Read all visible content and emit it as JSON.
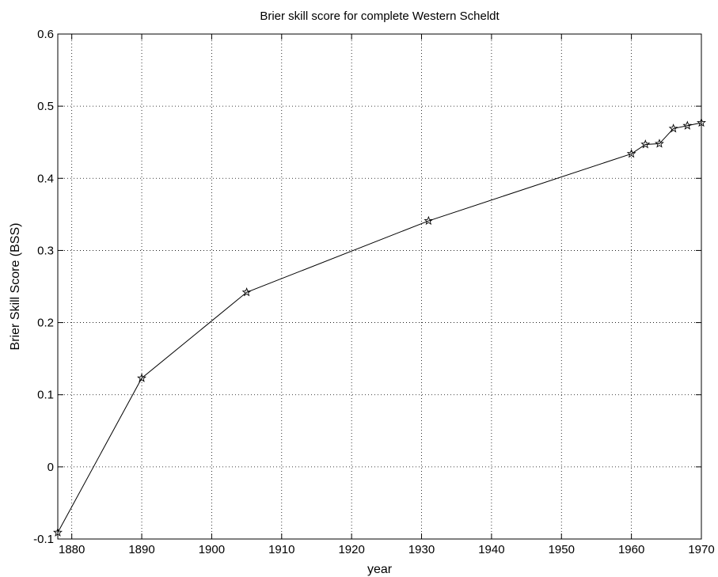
{
  "chart_data": {
    "type": "line",
    "title": "Brier skill score for complete Western Scheldt",
    "xlabel": "year",
    "ylabel": "Brier Skill Score (BSS)",
    "xlim": [
      1878,
      1970
    ],
    "ylim": [
      -0.1,
      0.6
    ],
    "grid": true,
    "marker": "star",
    "x_ticks": [
      1880,
      1890,
      1900,
      1910,
      1920,
      1930,
      1940,
      1950,
      1960,
      1970
    ],
    "x_tick_labels": [
      "1880",
      "1890",
      "1900",
      "1910",
      "1920",
      "1930",
      "1940",
      "1950",
      "1960",
      "1970"
    ],
    "y_ticks": [
      -0.1,
      0,
      0.1,
      0.2,
      0.3,
      0.4,
      0.5,
      0.6
    ],
    "y_tick_labels": [
      "-0.1",
      "0",
      "0.1",
      "0.2",
      "0.3",
      "0.4",
      "0.5",
      "0.6"
    ],
    "series": [
      {
        "x": [
          1878,
          1890,
          1905,
          1931,
          1960,
          1962,
          1964,
          1966,
          1968,
          1970
        ],
        "values": [
          -0.091,
          0.123,
          0.242,
          0.341,
          0.434,
          0.447,
          0.448,
          0.469,
          0.473,
          0.477
        ],
        "color": "#000000"
      }
    ]
  }
}
